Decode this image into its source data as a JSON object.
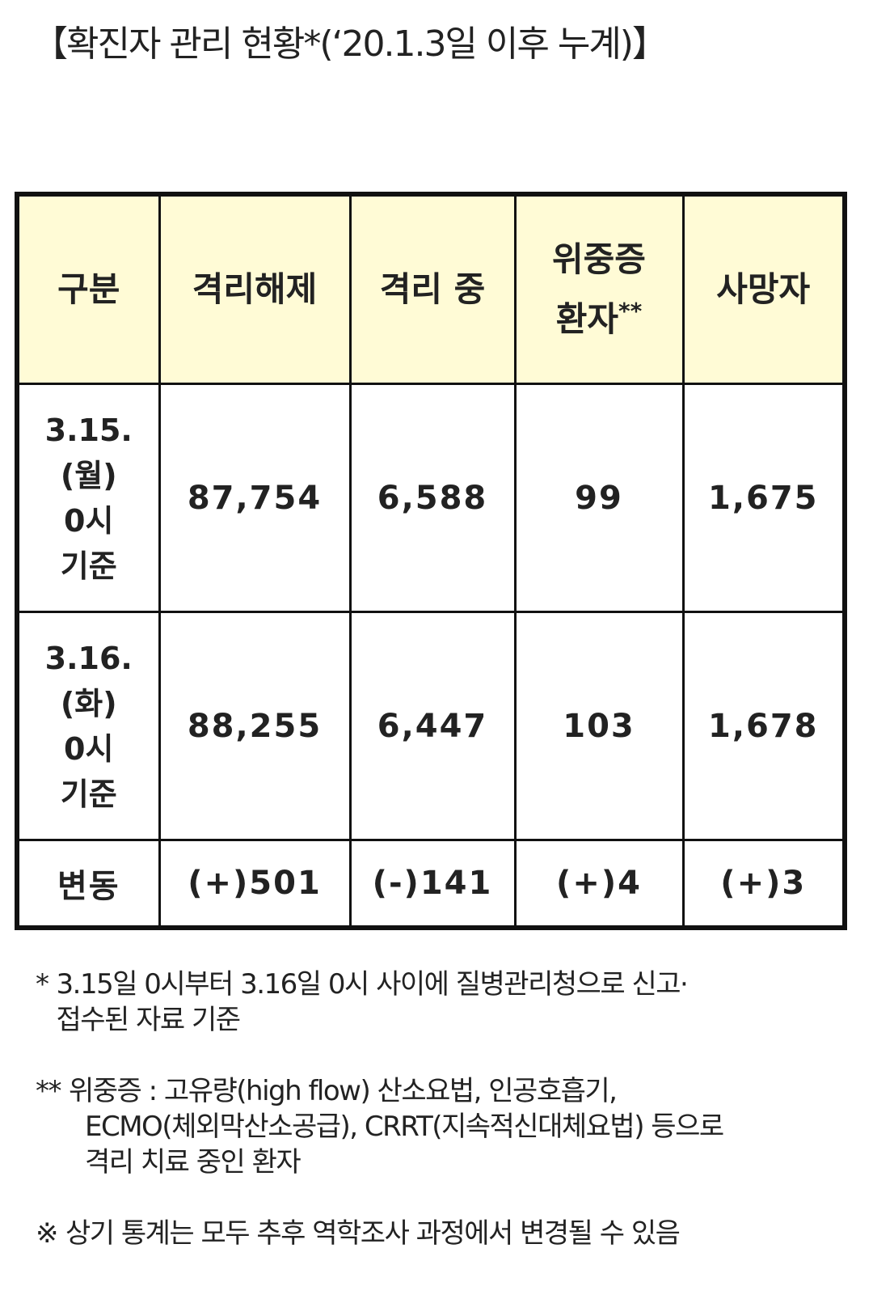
{
  "title": "【확진자 관리 현황*(‘20.1.3일 이후 누계)】",
  "table": {
    "header": [
      "구분",
      "격리해제",
      "격리 중",
      {
        "lines": [
          "위중증",
          "환자"
        ],
        "mark": "**"
      },
      "사망자"
    ],
    "rows": [
      [
        [
          "3.15.",
          "(월)",
          "0시",
          "기준"
        ],
        "87,754",
        "6,588",
        "99",
        "1,675"
      ],
      [
        [
          "3.16.",
          "(화)",
          "0시",
          "기준"
        ],
        "88,255",
        "6,447",
        "103",
        "1,678"
      ],
      [
        "변동",
        "(+)501",
        "(-)141",
        "(+)4",
        "(+)3"
      ]
    ]
  },
  "notes": [
    {
      "mark": "*",
      "lines": [
        "3.15일 0시부터 3.16일 0시 사이에 질병관리청으로 신고·",
        "접수된 자료 기준"
      ]
    },
    {
      "mark": "**",
      "lines": [
        "위중증 : 고유량(high flow) 산소요법, 인공호흡기,",
        "ECMO(체외막산소공급), CRRT(지속적신대체요법) 등으로",
        "격리 치료 중인 환자"
      ]
    },
    {
      "mark": "※",
      "lines": [
        "상기 통계는 모두 추후 역학조사 과정에서 변경될 수 있음"
      ]
    }
  ]
}
